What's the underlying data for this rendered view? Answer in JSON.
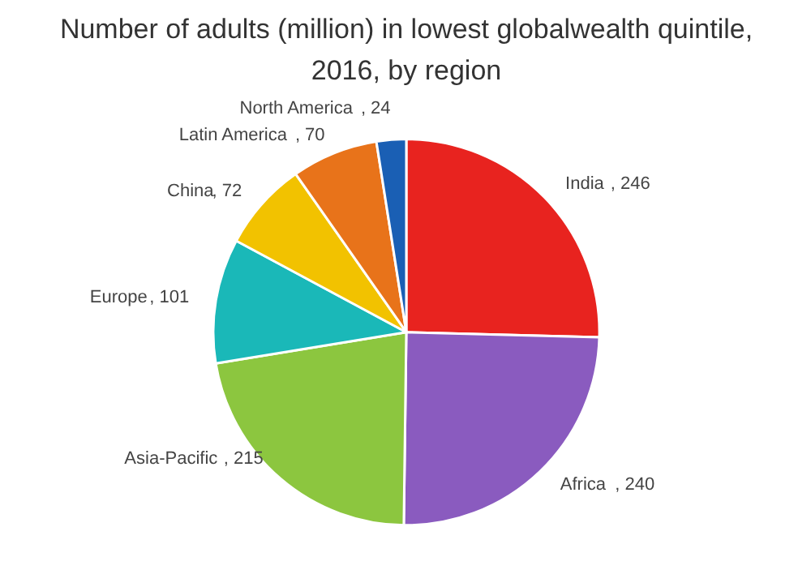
{
  "chart_data": {
    "type": "pie",
    "title": "Number of adults (million) in lowest globalwealth quintile,\n2016, by region",
    "categories": [
      "India",
      "Africa",
      "Asia-Pacific",
      "Europe",
      "China",
      "Latin America",
      "North America"
    ],
    "values": [
      246,
      240,
      215,
      101,
      72,
      70,
      24
    ],
    "value_labels": [
      ", 246",
      ", 240",
      ", 215",
      ", 101",
      ", 72",
      ", 70",
      ", 24"
    ],
    "colors": [
      "#e8231f",
      "#8a5bbf",
      "#8cc63f",
      "#1ab8b8",
      "#f2c200",
      "#e8731a",
      "#1a5fb4"
    ]
  }
}
